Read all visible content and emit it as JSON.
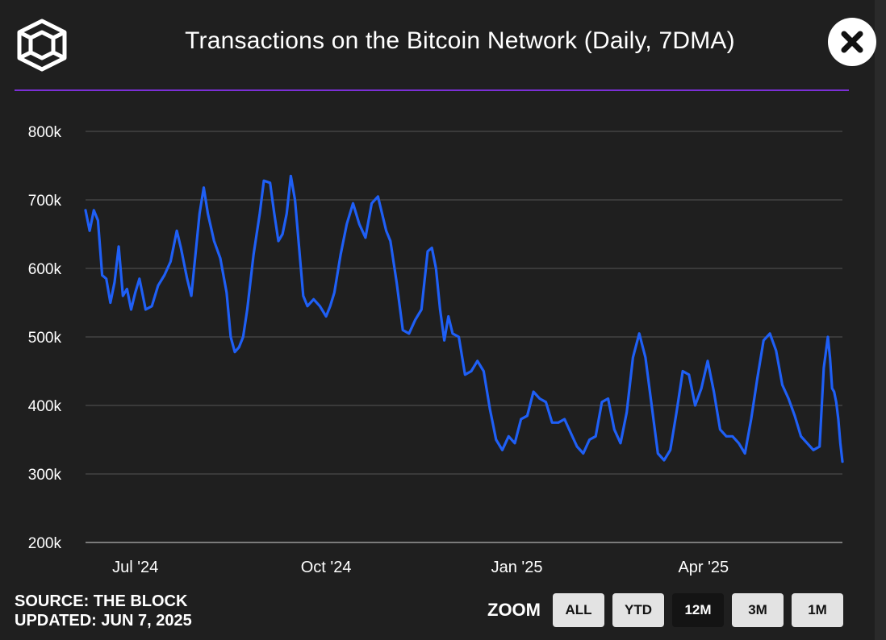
{
  "header": {
    "title": "Transactions on the Bitcoin Network (Daily, 7DMA)"
  },
  "icons": {
    "logo": "the-block-cube-logo",
    "close": "close-icon"
  },
  "colors": {
    "background": "#1f1f1f",
    "accent_divider": "#7b2fd6",
    "line": "#1f5ff5",
    "grid": "#4a4a4a",
    "button_bg": "#e3e3e3",
    "button_active_bg": "#141414"
  },
  "chart_data": {
    "type": "line",
    "title": "Transactions on the Bitcoin Network (Daily, 7DMA)",
    "xlabel": "",
    "ylabel": "",
    "ylim": [
      200000,
      800000
    ],
    "y_ticks": [
      {
        "value": 800000,
        "label": "800k"
      },
      {
        "value": 700000,
        "label": "700k"
      },
      {
        "value": 600000,
        "label": "600k"
      },
      {
        "value": 500000,
        "label": "500k"
      },
      {
        "value": 400000,
        "label": "400k"
      },
      {
        "value": 300000,
        "label": "300k"
      },
      {
        "value": 200000,
        "label": "200k"
      }
    ],
    "x_range": [
      "2024-06-07",
      "2025-06-07"
    ],
    "x_ticks": [
      {
        "date": "2024-07-01",
        "label": "Jul '24"
      },
      {
        "date": "2024-10-01",
        "label": "Oct '24"
      },
      {
        "date": "2025-01-01",
        "label": "Jan '25"
      },
      {
        "date": "2025-04-01",
        "label": "Apr '25"
      }
    ],
    "grid": true,
    "legend": "none",
    "series": [
      {
        "points": [
          [
            "2024-06-07",
            685000
          ],
          [
            "2024-06-09",
            655000
          ],
          [
            "2024-06-11",
            685000
          ],
          [
            "2024-06-13",
            670000
          ],
          [
            "2024-06-15",
            590000
          ],
          [
            "2024-06-17",
            585000
          ],
          [
            "2024-06-19",
            550000
          ],
          [
            "2024-06-21",
            580000
          ],
          [
            "2024-06-23",
            632000
          ],
          [
            "2024-06-25",
            560000
          ],
          [
            "2024-06-27",
            570000
          ],
          [
            "2024-06-29",
            540000
          ],
          [
            "2024-07-01",
            565000
          ],
          [
            "2024-07-03",
            585000
          ],
          [
            "2024-07-06",
            540000
          ],
          [
            "2024-07-09",
            545000
          ],
          [
            "2024-07-12",
            575000
          ],
          [
            "2024-07-15",
            590000
          ],
          [
            "2024-07-18",
            610000
          ],
          [
            "2024-07-21",
            655000
          ],
          [
            "2024-07-23",
            630000
          ],
          [
            "2024-07-26",
            585000
          ],
          [
            "2024-07-28",
            560000
          ],
          [
            "2024-07-30",
            620000
          ],
          [
            "2024-08-01",
            680000
          ],
          [
            "2024-08-03",
            718000
          ],
          [
            "2024-08-05",
            680000
          ],
          [
            "2024-08-08",
            640000
          ],
          [
            "2024-08-11",
            615000
          ],
          [
            "2024-08-14",
            565000
          ],
          [
            "2024-08-16",
            500000
          ],
          [
            "2024-08-18",
            478000
          ],
          [
            "2024-08-20",
            485000
          ],
          [
            "2024-08-22",
            500000
          ],
          [
            "2024-08-24",
            540000
          ],
          [
            "2024-08-27",
            620000
          ],
          [
            "2024-08-30",
            680000
          ],
          [
            "2024-09-01",
            728000
          ],
          [
            "2024-09-04",
            725000
          ],
          [
            "2024-09-06",
            680000
          ],
          [
            "2024-09-08",
            640000
          ],
          [
            "2024-09-10",
            650000
          ],
          [
            "2024-09-12",
            680000
          ],
          [
            "2024-09-14",
            735000
          ],
          [
            "2024-09-16",
            700000
          ],
          [
            "2024-09-18",
            630000
          ],
          [
            "2024-09-20",
            560000
          ],
          [
            "2024-09-22",
            545000
          ],
          [
            "2024-09-25",
            555000
          ],
          [
            "2024-09-28",
            545000
          ],
          [
            "2024-10-01",
            530000
          ],
          [
            "2024-10-03",
            545000
          ],
          [
            "2024-10-05",
            565000
          ],
          [
            "2024-10-08",
            620000
          ],
          [
            "2024-10-11",
            665000
          ],
          [
            "2024-10-14",
            695000
          ],
          [
            "2024-10-17",
            665000
          ],
          [
            "2024-10-20",
            645000
          ],
          [
            "2024-10-23",
            695000
          ],
          [
            "2024-10-26",
            705000
          ],
          [
            "2024-10-28",
            680000
          ],
          [
            "2024-10-30",
            655000
          ],
          [
            "2024-11-01",
            640000
          ],
          [
            "2024-11-04",
            580000
          ],
          [
            "2024-11-07",
            510000
          ],
          [
            "2024-11-10",
            505000
          ],
          [
            "2024-11-13",
            525000
          ],
          [
            "2024-11-16",
            540000
          ],
          [
            "2024-11-19",
            625000
          ],
          [
            "2024-11-21",
            630000
          ],
          [
            "2024-11-23",
            600000
          ],
          [
            "2024-11-25",
            540000
          ],
          [
            "2024-11-27",
            495000
          ],
          [
            "2024-11-29",
            530000
          ],
          [
            "2024-12-01",
            505000
          ],
          [
            "2024-12-04",
            500000
          ],
          [
            "2024-12-07",
            445000
          ],
          [
            "2024-12-10",
            450000
          ],
          [
            "2024-12-13",
            465000
          ],
          [
            "2024-12-16",
            450000
          ],
          [
            "2024-12-19",
            395000
          ],
          [
            "2024-12-22",
            350000
          ],
          [
            "2024-12-25",
            335000
          ],
          [
            "2024-12-28",
            355000
          ],
          [
            "2024-12-31",
            345000
          ],
          [
            "2025-01-03",
            380000
          ],
          [
            "2025-01-06",
            385000
          ],
          [
            "2025-01-09",
            420000
          ],
          [
            "2025-01-12",
            410000
          ],
          [
            "2025-01-15",
            405000
          ],
          [
            "2025-01-18",
            375000
          ],
          [
            "2025-01-21",
            375000
          ],
          [
            "2025-01-24",
            380000
          ],
          [
            "2025-01-27",
            360000
          ],
          [
            "2025-01-30",
            340000
          ],
          [
            "2025-02-02",
            330000
          ],
          [
            "2025-02-05",
            350000
          ],
          [
            "2025-02-08",
            355000
          ],
          [
            "2025-02-11",
            405000
          ],
          [
            "2025-02-14",
            410000
          ],
          [
            "2025-02-17",
            365000
          ],
          [
            "2025-02-20",
            345000
          ],
          [
            "2025-02-23",
            390000
          ],
          [
            "2025-02-26",
            470000
          ],
          [
            "2025-03-01",
            505000
          ],
          [
            "2025-03-04",
            470000
          ],
          [
            "2025-03-07",
            400000
          ],
          [
            "2025-03-10",
            330000
          ],
          [
            "2025-03-13",
            320000
          ],
          [
            "2025-03-16",
            335000
          ],
          [
            "2025-03-19",
            390000
          ],
          [
            "2025-03-22",
            450000
          ],
          [
            "2025-03-25",
            445000
          ],
          [
            "2025-03-28",
            400000
          ],
          [
            "2025-03-31",
            425000
          ],
          [
            "2025-04-03",
            465000
          ],
          [
            "2025-04-06",
            420000
          ],
          [
            "2025-04-09",
            365000
          ],
          [
            "2025-04-12",
            355000
          ],
          [
            "2025-04-15",
            355000
          ],
          [
            "2025-04-18",
            345000
          ],
          [
            "2025-04-21",
            330000
          ],
          [
            "2025-04-24",
            380000
          ],
          [
            "2025-04-27",
            440000
          ],
          [
            "2025-04-30",
            495000
          ],
          [
            "2025-05-03",
            505000
          ],
          [
            "2025-05-06",
            480000
          ],
          [
            "2025-05-09",
            430000
          ],
          [
            "2025-05-12",
            410000
          ],
          [
            "2025-05-15",
            385000
          ],
          [
            "2025-05-18",
            355000
          ],
          [
            "2025-05-21",
            345000
          ],
          [
            "2025-05-24",
            335000
          ],
          [
            "2025-05-27",
            340000
          ],
          [
            "2025-05-29",
            455000
          ],
          [
            "2025-05-31",
            500000
          ],
          [
            "2025-06-01",
            470000
          ],
          [
            "2025-06-02",
            425000
          ],
          [
            "2025-06-03",
            420000
          ],
          [
            "2025-06-04",
            405000
          ],
          [
            "2025-06-05",
            380000
          ],
          [
            "2025-06-06",
            345000
          ],
          [
            "2025-06-07",
            318000
          ]
        ]
      }
    ]
  },
  "footer": {
    "source": "SOURCE: THE BLOCK",
    "updated": "UPDATED: JUN 7, 2025",
    "zoom_label": "ZOOM",
    "zoom_options": [
      "ALL",
      "YTD",
      "12M",
      "3M",
      "1M"
    ],
    "zoom_selected": "12M"
  }
}
